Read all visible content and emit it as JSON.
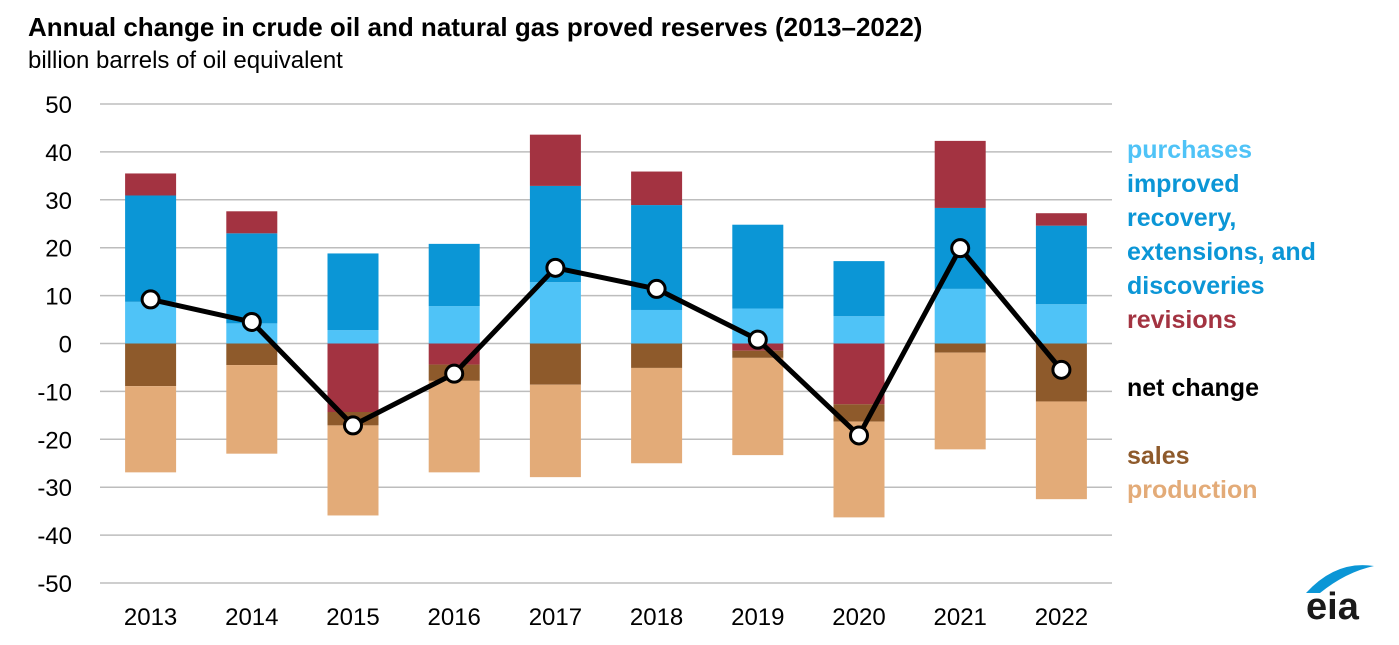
{
  "chart_data": {
    "type": "bar",
    "title": "Annual change in crude oil and natural gas proved reserves (2013–2022)",
    "subtitle": "billion barrels of oil equivalent",
    "xlabel": "",
    "ylabel": "",
    "ylim": [
      -50,
      50
    ],
    "yticks": [
      50,
      40,
      30,
      20,
      10,
      0,
      -10,
      -20,
      -30,
      -40,
      -50
    ],
    "grid": true,
    "legend_position": "right",
    "categories": [
      "2013",
      "2014",
      "2015",
      "2016",
      "2017",
      "2018",
      "2019",
      "2020",
      "2021",
      "2022"
    ],
    "series": [
      {
        "name": "purchases",
        "color": "#4FC3F7",
        "values": [
          8.7,
          4.2,
          2.8,
          7.8,
          12.8,
          7.0,
          7.3,
          5.7,
          11.4,
          8.2
        ]
      },
      {
        "name": "improved recovery, extensions, and discoveries",
        "color": "#0B96D6",
        "values": [
          22.2,
          18.8,
          16.0,
          13.0,
          20.1,
          21.9,
          17.5,
          11.5,
          16.9,
          16.4
        ]
      },
      {
        "name": "revisions",
        "color": "#A33341",
        "values": [
          4.6,
          4.6,
          -14.3,
          -4.4,
          10.7,
          7.0,
          -1.5,
          -12.7,
          14.0,
          2.6
        ]
      },
      {
        "name": "sales",
        "color": "#8E5A2B",
        "values": [
          -8.9,
          -4.5,
          -2.8,
          -3.4,
          -8.6,
          -5.1,
          -1.5,
          -3.6,
          -1.9,
          -12.1
        ]
      },
      {
        "name": "production",
        "color": "#E3AB78",
        "values": [
          -18.0,
          -18.5,
          -18.8,
          -19.1,
          -19.3,
          -19.9,
          -20.3,
          -20.0,
          -20.2,
          -20.4
        ]
      }
    ],
    "line_series": {
      "name": "net change",
      "color": "#000000",
      "values": [
        9.2,
        4.5,
        -17.1,
        -6.3,
        15.8,
        11.4,
        0.8,
        -19.2,
        19.9,
        -5.5
      ]
    },
    "legend_lines": [
      {
        "text": "purchases",
        "color": "#4FC3F7"
      },
      {
        "text": "improved",
        "color": "#0B96D6"
      },
      {
        "text": "recovery,",
        "color": "#0B96D6"
      },
      {
        "text": "extensions, and",
        "color": "#0B96D6"
      },
      {
        "text": "discoveries",
        "color": "#0B96D6"
      },
      {
        "text": "revisions",
        "color": "#A33341"
      },
      {
        "text": "net change",
        "color": "#000000"
      },
      {
        "text": "sales",
        "color": "#8E5A2B"
      },
      {
        "text": "production",
        "color": "#E3AB78"
      }
    ]
  },
  "branding": {
    "logo_text": "eia",
    "logo_color": "#0B96D6"
  }
}
